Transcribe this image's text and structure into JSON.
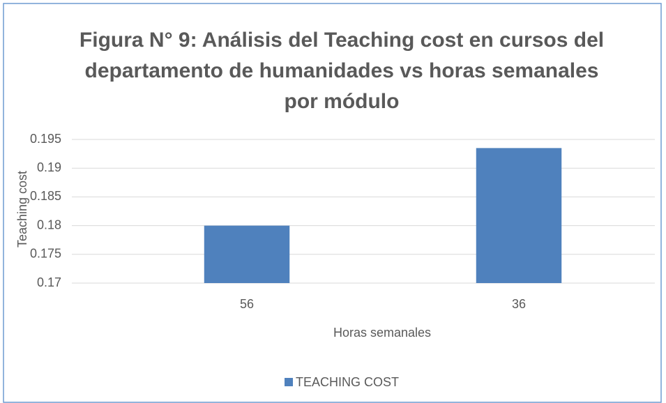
{
  "chart_data": {
    "type": "bar",
    "title": "Figura N° 9: Análisis del Teaching cost en cursos del departamento de humanidades vs horas semanales por módulo",
    "x_label": "Horas semanales",
    "y_label": "Teaching cost",
    "categories": [
      "56",
      "36"
    ],
    "series": [
      {
        "name": "TEACHING COST",
        "color": "#4f81bd",
        "values": [
          0.18,
          0.1935
        ]
      }
    ],
    "ylim": [
      0.17,
      0.195
    ],
    "yticks": [
      0.17,
      0.175,
      0.18,
      0.185,
      0.19,
      0.195
    ],
    "grid": true,
    "legend": "bottom"
  }
}
